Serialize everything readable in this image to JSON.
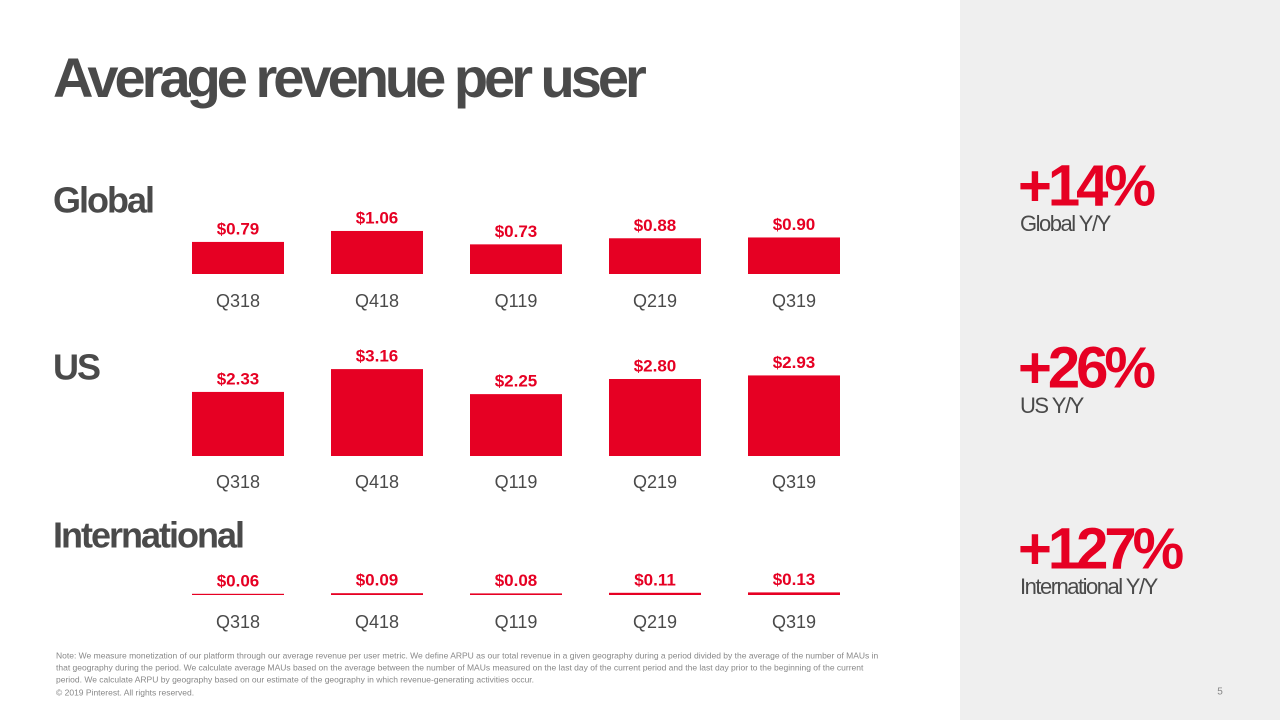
{
  "title": "Average revenue per user",
  "chart_data": [
    {
      "type": "bar",
      "title": "Global",
      "categories": [
        "Q318",
        "Q418",
        "Q119",
        "Q219",
        "Q319"
      ],
      "values": [
        0.79,
        1.06,
        0.73,
        0.88,
        0.9
      ],
      "value_labels": [
        "$0.79",
        "$1.06",
        "$0.73",
        "$0.88",
        "$0.90"
      ],
      "color": "#e60023"
    },
    {
      "type": "bar",
      "title": "US",
      "categories": [
        "Q318",
        "Q418",
        "Q119",
        "Q219",
        "Q319"
      ],
      "values": [
        2.33,
        3.16,
        2.25,
        2.8,
        2.93
      ],
      "value_labels": [
        "$2.33",
        "$3.16",
        "$2.25",
        "$2.80",
        "$2.93"
      ],
      "color": "#e60023"
    },
    {
      "type": "bar",
      "title": "International",
      "categories": [
        "Q318",
        "Q418",
        "Q119",
        "Q219",
        "Q319"
      ],
      "values": [
        0.06,
        0.09,
        0.08,
        0.11,
        0.13
      ],
      "value_labels": [
        "$0.06",
        "$0.09",
        "$0.08",
        "$0.11",
        "$0.13"
      ],
      "color": "#e60023"
    }
  ],
  "stats": [
    {
      "value": "+14%",
      "label": "Global Y/Y"
    },
    {
      "value": "+26%",
      "label": "US Y/Y"
    },
    {
      "value": "+127%",
      "label": "International Y/Y"
    }
  ],
  "note": [
    "Note: We measure monetization of our platform through our average revenue per user metric. We define ARPU as our total revenue in a given geography during a period divided by the average of the number of MAUs in",
    "that geography during the period. We calculate average MAUs based on the average between the number of MAUs measured on the last day of the current period and the last day prior to the beginning of the current",
    "period. We calculate ARPU by geography based on our estimate of the geography in which revenue-generating activities occur."
  ],
  "copyright": "© 2019 Pinterest. All rights reserved.",
  "page_number": "5"
}
